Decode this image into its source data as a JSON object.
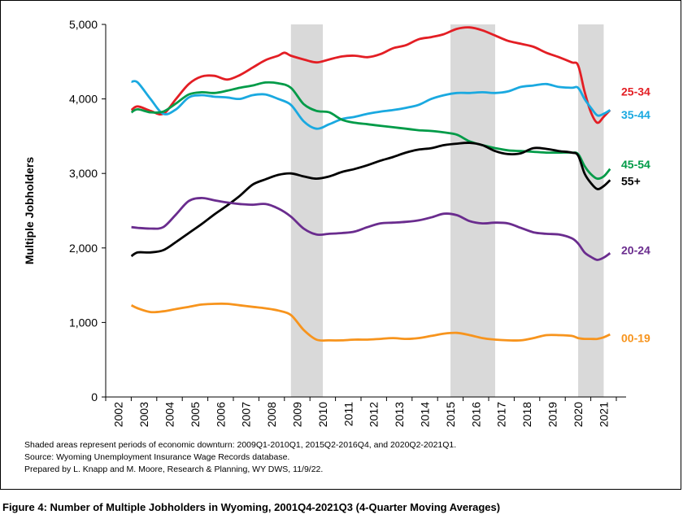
{
  "chart_data": {
    "type": "line",
    "title": "",
    "xlabel": "",
    "ylabel": "Multiple Jobholders",
    "xlim": [
      2002,
      2022
    ],
    "ylim": [
      0,
      5000
    ],
    "y_ticks": [
      0,
      1000,
      2000,
      3000,
      4000,
      5000
    ],
    "y_tick_labels": [
      "0",
      "1,000",
      "2,000",
      "3,000",
      "4,000",
      "5,000"
    ],
    "x_tick_labels": [
      "2002",
      "2003",
      "2004",
      "2005",
      "2006",
      "2007",
      "2008",
      "2009",
      "2010",
      "2011",
      "2012",
      "2013",
      "2014",
      "2015",
      "2016",
      "2017",
      "2018",
      "2019",
      "2020",
      "2021"
    ],
    "grid": false,
    "legend": "labels at right end of each line",
    "shaded_periods": [
      [
        2009.0,
        2010.25
      ],
      [
        2015.25,
        2017.0
      ],
      [
        2020.25,
        2021.25
      ]
    ],
    "shade_color": "#d9d9d9",
    "series": [
      {
        "name": "25-34",
        "color": "#e31e24",
        "x": [
          2002.75,
          2003.0,
          2003.5,
          2004.0,
          2004.5,
          2005.0,
          2005.5,
          2006.0,
          2006.5,
          2007.0,
          2007.5,
          2008.0,
          2008.5,
          2008.75,
          2009.0,
          2009.5,
          2010.0,
          2010.5,
          2011.0,
          2011.5,
          2012.0,
          2012.5,
          2013.0,
          2013.5,
          2014.0,
          2014.5,
          2015.0,
          2015.5,
          2016.0,
          2016.5,
          2017.0,
          2017.5,
          2018.0,
          2018.5,
          2019.0,
          2019.5,
          2020.0,
          2020.25,
          2020.5,
          2020.75,
          2021.0,
          2021.25,
          2021.5
        ],
        "y": [
          3850,
          3900,
          3840,
          3800,
          4000,
          4200,
          4300,
          4310,
          4260,
          4320,
          4420,
          4520,
          4580,
          4620,
          4580,
          4530,
          4490,
          4530,
          4570,
          4580,
          4560,
          4600,
          4680,
          4720,
          4800,
          4830,
          4870,
          4940,
          4960,
          4920,
          4850,
          4780,
          4740,
          4700,
          4620,
          4560,
          4490,
          4450,
          4100,
          3820,
          3680,
          3760,
          3850
        ]
      },
      {
        "name": "35-44",
        "color": "#1aa9e0",
        "x": [
          2002.75,
          2003.0,
          2003.5,
          2004.0,
          2004.5,
          2005.0,
          2005.5,
          2006.0,
          2006.5,
          2007.0,
          2007.5,
          2008.0,
          2008.5,
          2009.0,
          2009.5,
          2010.0,
          2010.5,
          2011.0,
          2011.5,
          2012.0,
          2012.5,
          2013.0,
          2013.5,
          2014.0,
          2014.5,
          2015.0,
          2015.5,
          2016.0,
          2016.5,
          2017.0,
          2017.5,
          2018.0,
          2018.5,
          2019.0,
          2019.5,
          2020.0,
          2020.25,
          2020.5,
          2020.75,
          2021.0,
          2021.25,
          2021.5
        ],
        "y": [
          4230,
          4220,
          4000,
          3800,
          3860,
          4020,
          4050,
          4030,
          4020,
          4000,
          4050,
          4060,
          4000,
          3920,
          3700,
          3600,
          3660,
          3730,
          3760,
          3800,
          3830,
          3850,
          3880,
          3920,
          4000,
          4050,
          4080,
          4080,
          4090,
          4080,
          4100,
          4160,
          4180,
          4200,
          4160,
          4150,
          4150,
          4000,
          3880,
          3780,
          3800,
          3850
        ]
      },
      {
        "name": "45-54",
        "color": "#009b48",
        "x": [
          2002.75,
          2003.0,
          2003.5,
          2004.0,
          2004.5,
          2005.0,
          2005.5,
          2006.0,
          2006.5,
          2007.0,
          2007.5,
          2008.0,
          2008.5,
          2009.0,
          2009.5,
          2010.0,
          2010.5,
          2011.0,
          2011.5,
          2012.0,
          2012.5,
          2013.0,
          2013.5,
          2014.0,
          2014.5,
          2015.0,
          2015.5,
          2016.0,
          2016.5,
          2017.0,
          2017.5,
          2018.0,
          2018.5,
          2019.0,
          2019.5,
          2020.0,
          2020.25,
          2020.5,
          2020.75,
          2021.0,
          2021.25,
          2021.5
        ],
        "y": [
          3820,
          3860,
          3820,
          3830,
          3940,
          4060,
          4090,
          4080,
          4110,
          4150,
          4180,
          4220,
          4210,
          4150,
          3930,
          3840,
          3820,
          3720,
          3680,
          3660,
          3640,
          3620,
          3600,
          3580,
          3570,
          3550,
          3520,
          3430,
          3380,
          3340,
          3310,
          3300,
          3290,
          3280,
          3280,
          3280,
          3260,
          3100,
          2990,
          2930,
          2960,
          3060
        ]
      },
      {
        "name": "55+",
        "color": "#000000",
        "x": [
          2002.75,
          2003.0,
          2003.5,
          2004.0,
          2004.5,
          2005.0,
          2005.5,
          2006.0,
          2006.5,
          2007.0,
          2007.5,
          2008.0,
          2008.5,
          2009.0,
          2009.5,
          2010.0,
          2010.5,
          2011.0,
          2011.5,
          2012.0,
          2012.5,
          2013.0,
          2013.5,
          2014.0,
          2014.5,
          2015.0,
          2015.5,
          2016.0,
          2016.5,
          2017.0,
          2017.5,
          2018.0,
          2018.5,
          2019.0,
          2019.5,
          2020.0,
          2020.25,
          2020.5,
          2020.75,
          2021.0,
          2021.25,
          2021.5
        ],
        "y": [
          1890,
          1940,
          1940,
          1970,
          2080,
          2200,
          2320,
          2450,
          2570,
          2700,
          2850,
          2920,
          2980,
          3000,
          2960,
          2930,
          2960,
          3020,
          3060,
          3110,
          3170,
          3220,
          3280,
          3320,
          3340,
          3380,
          3400,
          3410,
          3380,
          3300,
          3260,
          3270,
          3340,
          3330,
          3300,
          3280,
          3240,
          3000,
          2870,
          2790,
          2830,
          2910
        ]
      },
      {
        "name": "20-24",
        "color": "#6a2c8e",
        "x": [
          2002.75,
          2003.0,
          2003.5,
          2004.0,
          2004.5,
          2005.0,
          2005.5,
          2006.0,
          2006.5,
          2007.0,
          2007.5,
          2008.0,
          2008.5,
          2009.0,
          2009.5,
          2010.0,
          2010.5,
          2011.0,
          2011.5,
          2012.0,
          2012.5,
          2013.0,
          2013.5,
          2014.0,
          2014.5,
          2015.0,
          2015.5,
          2016.0,
          2016.5,
          2017.0,
          2017.5,
          2018.0,
          2018.5,
          2019.0,
          2019.5,
          2020.0,
          2020.25,
          2020.5,
          2020.75,
          2021.0,
          2021.25,
          2021.5
        ],
        "y": [
          2280,
          2270,
          2260,
          2280,
          2450,
          2630,
          2670,
          2640,
          2610,
          2590,
          2580,
          2590,
          2530,
          2420,
          2260,
          2180,
          2190,
          2200,
          2220,
          2280,
          2330,
          2340,
          2350,
          2370,
          2410,
          2460,
          2440,
          2360,
          2330,
          2340,
          2330,
          2270,
          2210,
          2190,
          2180,
          2130,
          2060,
          1940,
          1880,
          1840,
          1870,
          1930
        ]
      },
      {
        "name": "00-19",
        "color": "#f7941d",
        "x": [
          2002.75,
          2003.0,
          2003.5,
          2004.0,
          2004.5,
          2005.0,
          2005.5,
          2006.0,
          2006.5,
          2007.0,
          2007.5,
          2008.0,
          2008.5,
          2009.0,
          2009.5,
          2010.0,
          2010.5,
          2011.0,
          2011.5,
          2012.0,
          2012.5,
          2013.0,
          2013.5,
          2014.0,
          2014.5,
          2015.0,
          2015.5,
          2016.0,
          2016.5,
          2017.0,
          2017.5,
          2018.0,
          2018.5,
          2019.0,
          2019.5,
          2020.0,
          2020.25,
          2020.5,
          2020.75,
          2021.0,
          2021.25,
          2021.5
        ],
        "y": [
          1230,
          1190,
          1140,
          1150,
          1180,
          1210,
          1240,
          1250,
          1250,
          1230,
          1210,
          1190,
          1160,
          1100,
          900,
          770,
          760,
          760,
          770,
          770,
          780,
          790,
          780,
          790,
          820,
          850,
          860,
          830,
          790,
          770,
          760,
          760,
          790,
          830,
          830,
          820,
          790,
          780,
          780,
          780,
          800,
          840
        ]
      }
    ],
    "end_labels": [
      "25-34",
      "35-44",
      "45-54",
      "55+",
      "20-24",
      "00-19"
    ]
  },
  "notes": [
    "Shaded areas represent periods of economic downturn: 2009Q1-2010Q1, 2015Q2-2016Q4, and 2020Q2-2021Q1.",
    "Source: Wyoming Unemployment Insurance Wage Records database.",
    "Prepared by L. Knapp and M. Moore, Research & Planning, WY DWS, 11/9/22."
  ],
  "caption": "Figure 4: Number of Multiple Jobholders in Wyoming, 2001Q4-2021Q3 (4-Quarter Moving Averages)"
}
